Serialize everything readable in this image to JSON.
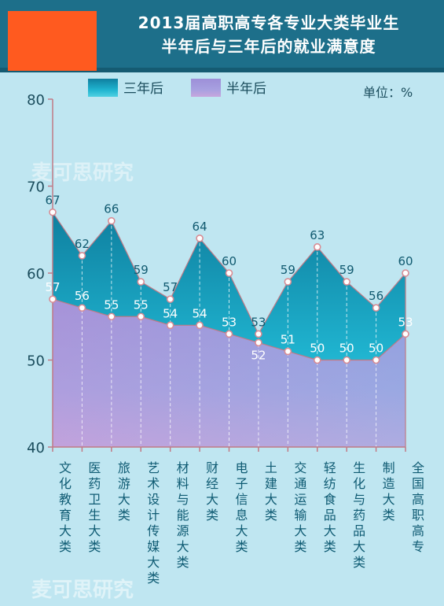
{
  "header": {
    "title_line1": "2013届高职高专各专业大类毕业生",
    "title_line2": "半年后与三年后的就业满意度",
    "logo_color": "#ff5a1f",
    "background_color": "#1d6f8a"
  },
  "watermark": "麦可思研究",
  "chart_data": {
    "type": "area",
    "title": "2013届高职高专各专业大类毕业生半年后与三年后的就业满意度",
    "unit_label": "单位：%",
    "categories": [
      "文化教育大类",
      "医药卫生大类",
      "旅游大类",
      "艺术设计传媒大类",
      "材料与能源大类",
      "财经大类",
      "电子信息大类",
      "土建大类",
      "交通运输大类",
      "轻纺食品大类",
      "生化与药品大类",
      "制造大类",
      "全国高职高专"
    ],
    "series": [
      {
        "name": "三年后",
        "values": [
          67,
          62,
          66,
          59,
          57,
          64,
          60,
          53,
          59,
          63,
          59,
          56,
          60
        ],
        "color": "#19a9c4"
      },
      {
        "name": "半年后",
        "values": [
          57,
          56,
          55,
          55,
          54,
          54,
          53,
          52,
          51,
          50,
          50,
          50,
          53
        ],
        "color": "#a99ad8"
      }
    ],
    "ylim": [
      40,
      80
    ],
    "yticks": [
      40,
      50,
      60,
      70,
      80
    ],
    "legend_position": "top",
    "grid": false
  }
}
